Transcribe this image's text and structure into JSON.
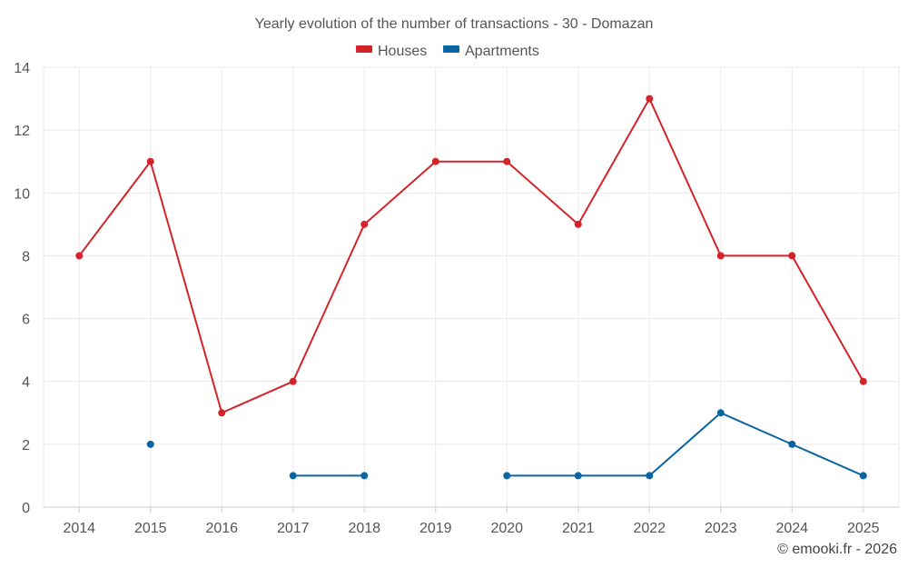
{
  "chart_data": {
    "type": "line",
    "title": "Yearly evolution of the number of transactions - 30 - Domazan",
    "categories": [
      "2014",
      "2015",
      "2016",
      "2017",
      "2018",
      "2019",
      "2020",
      "2021",
      "2022",
      "2023",
      "2024",
      "2025"
    ],
    "y_ticks": [
      "0",
      "2",
      "4",
      "6",
      "8",
      "10",
      "12",
      "14"
    ],
    "ylim": [
      0,
      14
    ],
    "legend_position": "top-center",
    "grid": true,
    "series": [
      {
        "name": "Houses",
        "color": "#d3242a",
        "values": [
          8,
          11,
          3,
          4,
          9,
          11,
          11,
          9,
          13,
          8,
          8,
          4
        ]
      },
      {
        "name": "Apartments",
        "color": "#0a65a0",
        "values": [
          null,
          2,
          null,
          1,
          1,
          null,
          1,
          1,
          1,
          3,
          2,
          1
        ]
      }
    ],
    "credit": "© emooki.fr - 2026"
  }
}
